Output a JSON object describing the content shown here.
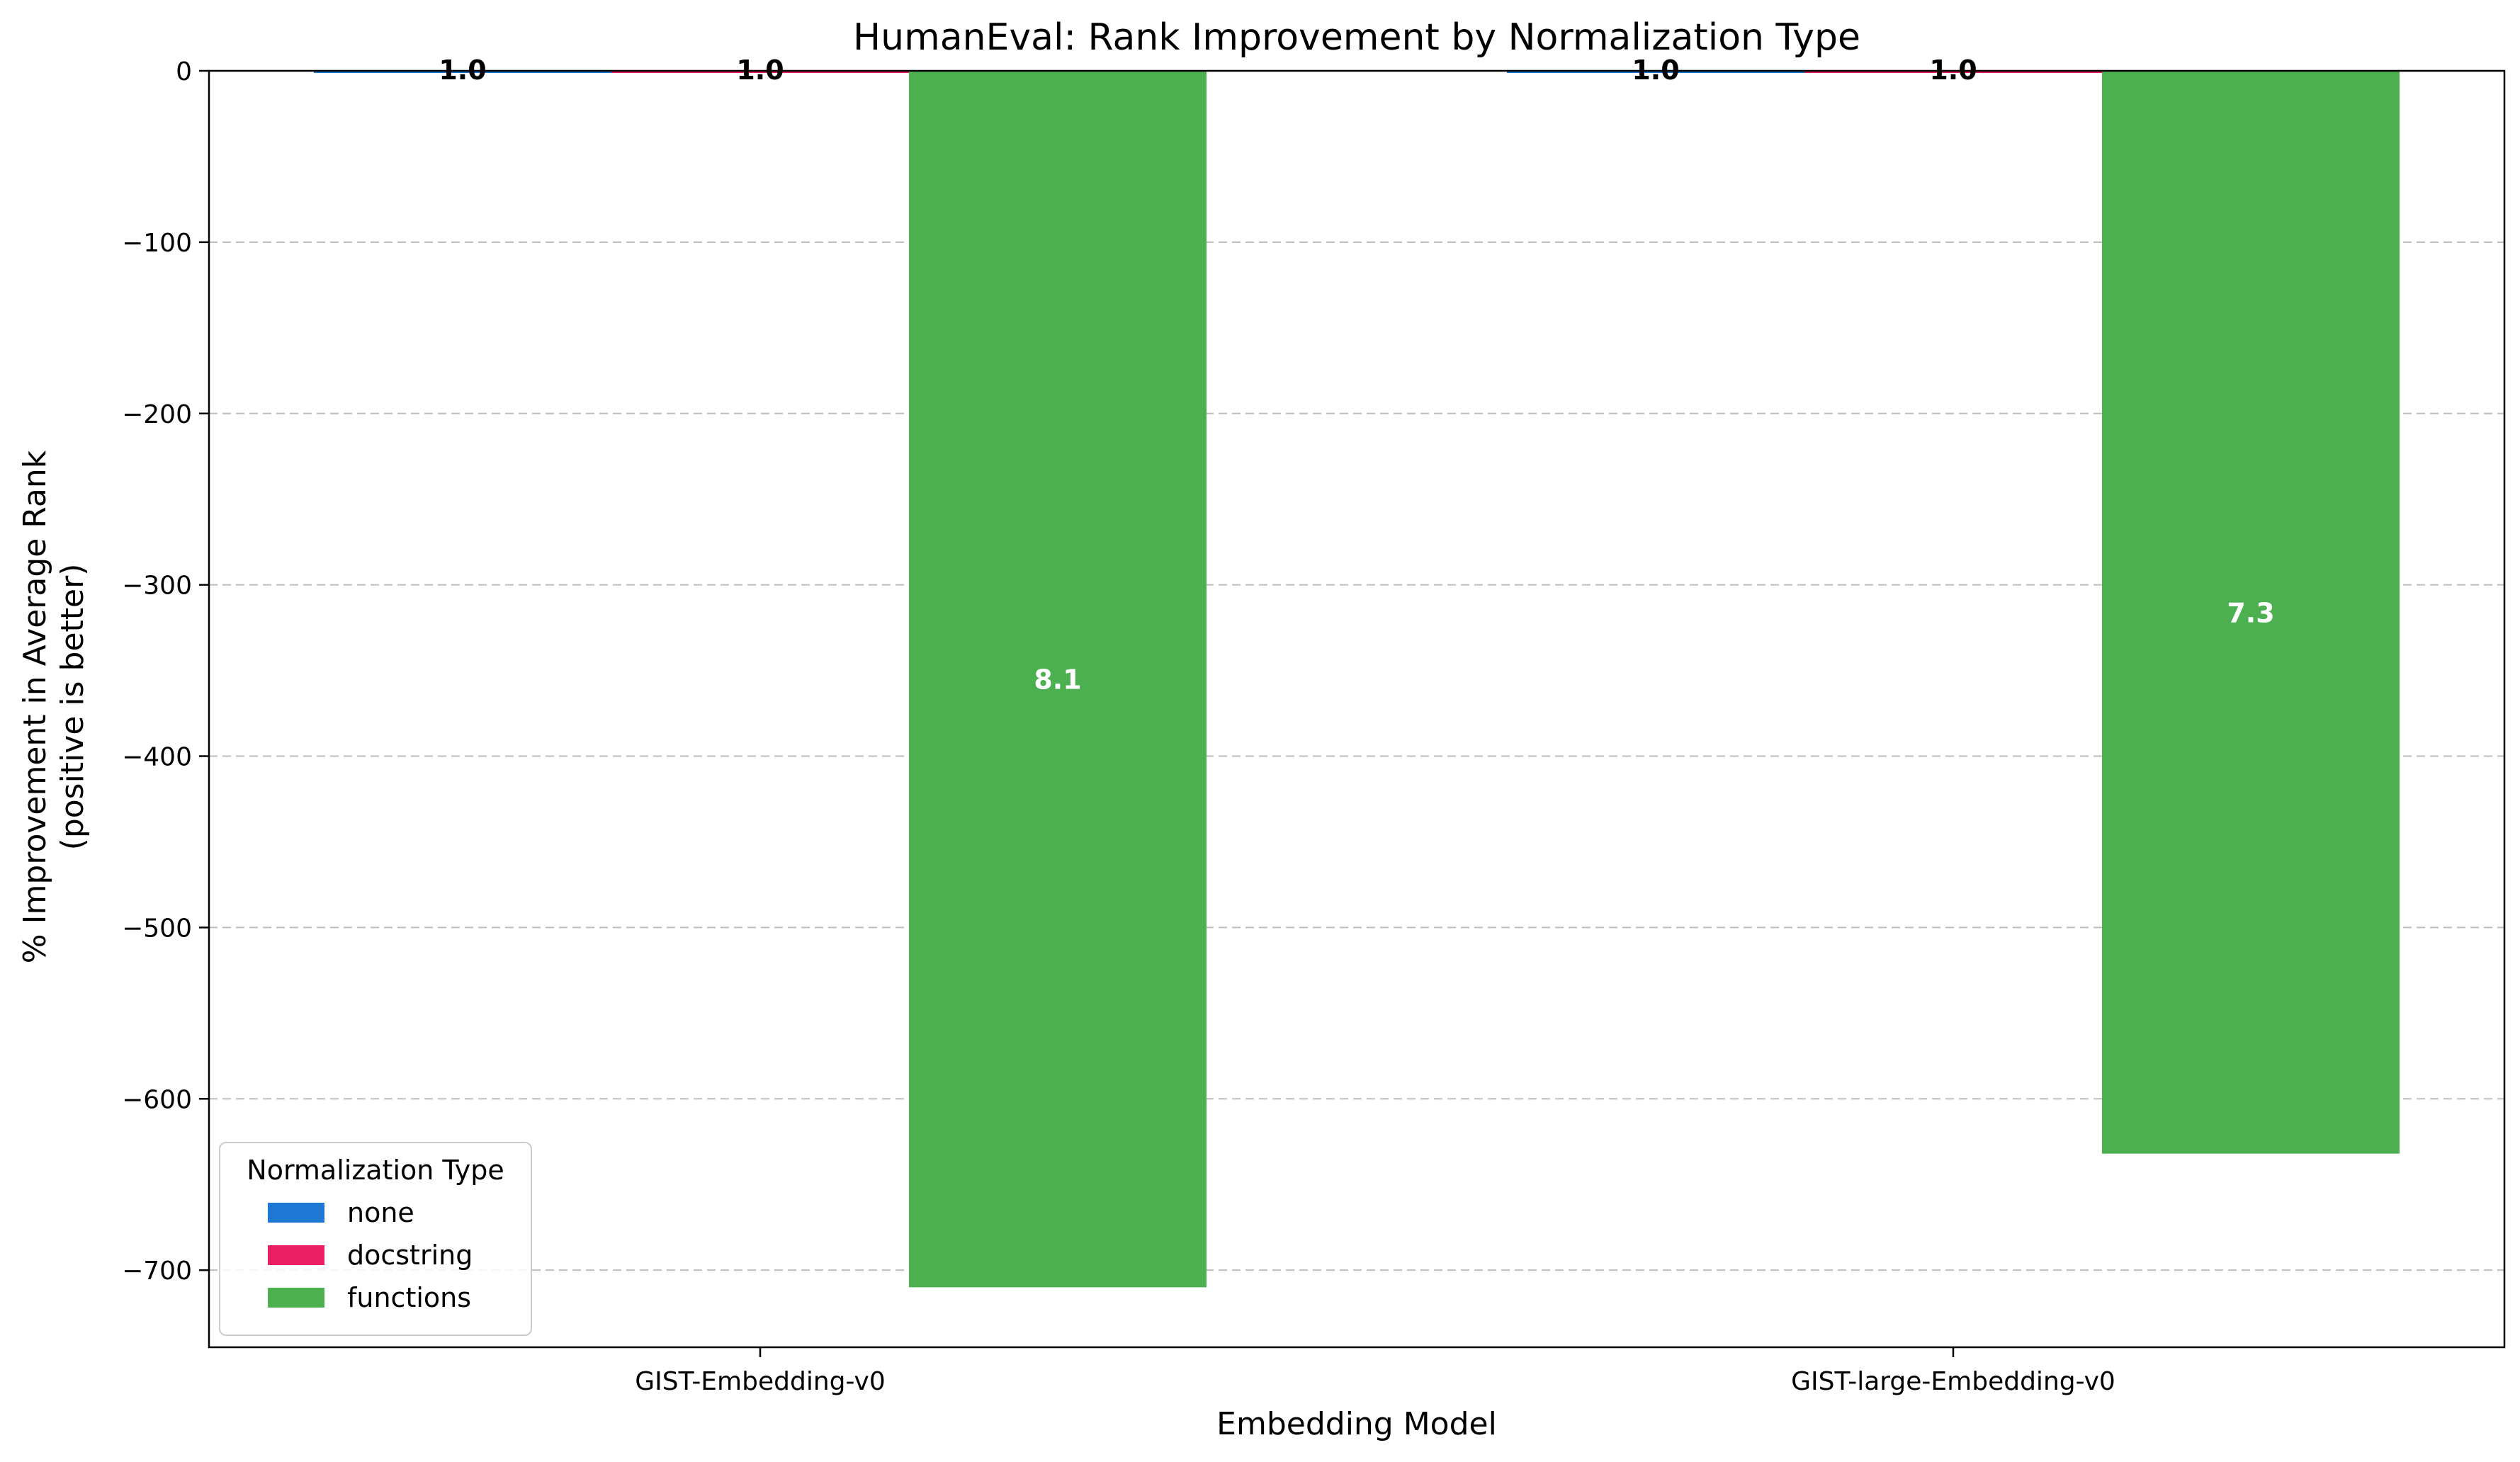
{
  "chart_data": {
    "type": "bar",
    "title": "HumanEval: Rank Improvement by Normalization Type",
    "xlabel": "Embedding Model",
    "ylabel_lines": [
      "% Improvement in Average Rank",
      "(positive is better)"
    ],
    "categories": [
      "GIST-Embedding-v0",
      "GIST-large-Embedding-v0"
    ],
    "series": [
      {
        "name": "none",
        "color": "#1f77d4",
        "values": [
          0,
          0
        ],
        "labels": [
          "1.0",
          "1.0"
        ]
      },
      {
        "name": "docstring",
        "color": "#e91e63",
        "values": [
          0,
          0
        ],
        "labels": [
          "1.0",
          "1.0"
        ]
      },
      {
        "name": "functions",
        "color": "#4caf50",
        "values": [
          -710,
          -632
        ],
        "labels": [
          "8.1",
          "7.3"
        ]
      }
    ],
    "ylim": [
      -745,
      0
    ],
    "yticks": [
      0,
      -100,
      -200,
      -300,
      -400,
      -500,
      -600,
      -700
    ],
    "ytick_labels": [
      "0",
      "−100",
      "−200",
      "−300",
      "−400",
      "−500",
      "−600",
      "−700"
    ],
    "grid": "y-dashed",
    "legend": {
      "title": "Normalization Type",
      "position": "lower-left"
    }
  }
}
